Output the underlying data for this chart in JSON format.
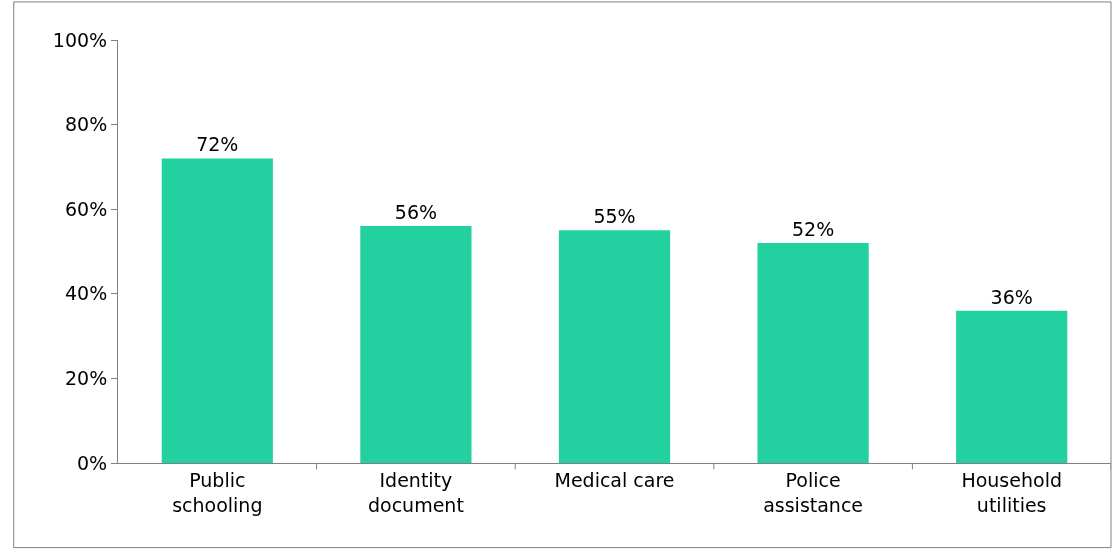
{
  "chart_data": {
    "type": "bar",
    "categories": [
      "Public schooling",
      "Identity document",
      "Medical care",
      "Police assistance",
      "Household utilities"
    ],
    "values": [
      72,
      56,
      55,
      52,
      36
    ],
    "value_labels": [
      "72%",
      "56%",
      "55%",
      "52%",
      "36%"
    ],
    "color": "#23d1a0",
    "ylim": [
      0,
      100
    ],
    "yticks": [
      {
        "value": 0,
        "label": "0%"
      },
      {
        "value": 20,
        "label": "20%"
      },
      {
        "value": 40,
        "label": "40%"
      },
      {
        "value": 60,
        "label": "60%"
      },
      {
        "value": 80,
        "label": "80%"
      },
      {
        "value": 100,
        "label": "100%"
      }
    ],
    "tick_labels": true
  }
}
